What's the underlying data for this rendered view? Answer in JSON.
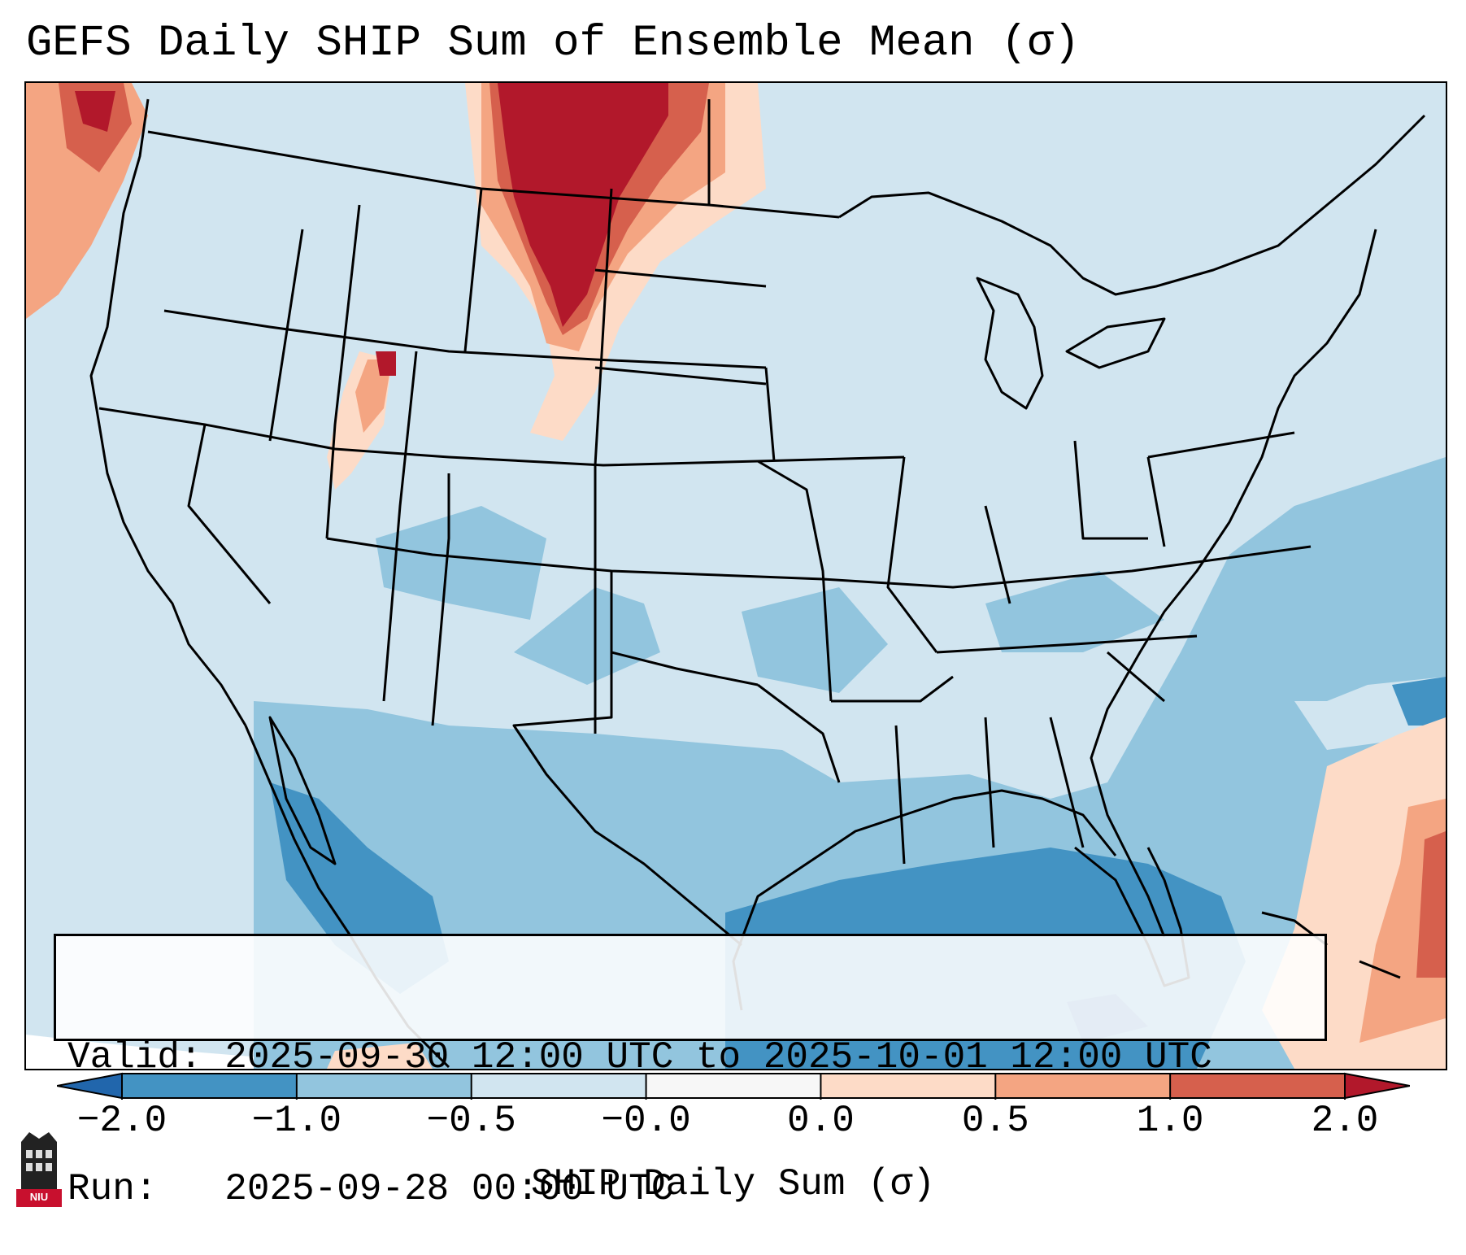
{
  "title": "GEFS Daily SHIP Sum of Ensemble Mean (σ)",
  "info": {
    "valid_line": "Valid: 2025-09-30 12:00 UTC to 2025-10-01 12:00 UTC",
    "run_line": "Run:   2025-09-28 00:00 UTC"
  },
  "colorbar": {
    "label": "SHIP Daily Sum (σ)",
    "ticks": [
      "−2.0",
      "−1.0",
      "−0.5",
      "−0.0",
      "0.0",
      "0.5",
      "1.0",
      "2.0"
    ],
    "colors": [
      "#4393c3",
      "#92c5de",
      "#d1e5f0",
      "#f7f7f7",
      "#fddbc7",
      "#f4a582",
      "#d6604d"
    ],
    "extend_low_color": "#2166ac",
    "extend_high_color": "#b2182b"
  },
  "logo": {
    "text": "NIU",
    "icon": "university-building-icon"
  },
  "map": {
    "icon": "us-states-outline-icon"
  }
}
